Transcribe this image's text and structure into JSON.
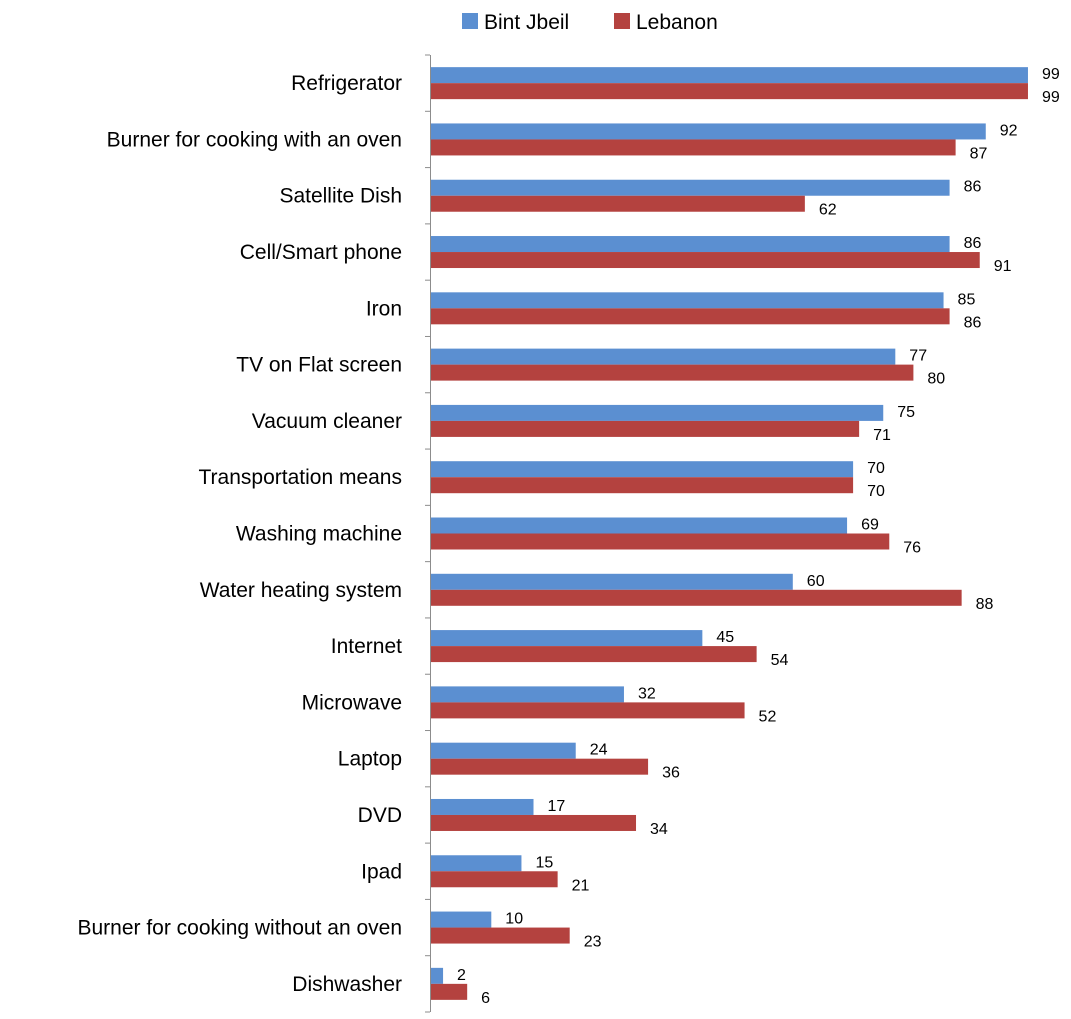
{
  "chart_data": {
    "type": "bar",
    "orientation": "horizontal",
    "categories": [
      "Refrigerator",
      "Burner for cooking with an oven",
      "Satellite Dish",
      "Cell/Smart phone",
      "Iron",
      "TV on Flat screen",
      "Vacuum cleaner",
      "Transportation means",
      "Washing machine",
      "Water heating system",
      "Internet",
      "Microwave",
      "Laptop",
      "DVD",
      "Ipad",
      "Burner for cooking without an oven",
      "Dishwasher"
    ],
    "series": [
      {
        "name": "Bint Jbeil",
        "color": "#5b8fd1",
        "values": [
          99,
          92,
          86,
          86,
          85,
          77,
          75,
          70,
          69,
          60,
          45,
          32,
          24,
          17,
          15,
          10,
          2
        ]
      },
      {
        "name": "Lebanon",
        "color": "#b4423f",
        "values": [
          99,
          87,
          62,
          91,
          86,
          80,
          71,
          70,
          76,
          88,
          54,
          52,
          36,
          34,
          21,
          23,
          6
        ]
      }
    ],
    "xlim": [
      0,
      100
    ],
    "grid": false,
    "legend_position": "top-center",
    "data_labels": true
  }
}
